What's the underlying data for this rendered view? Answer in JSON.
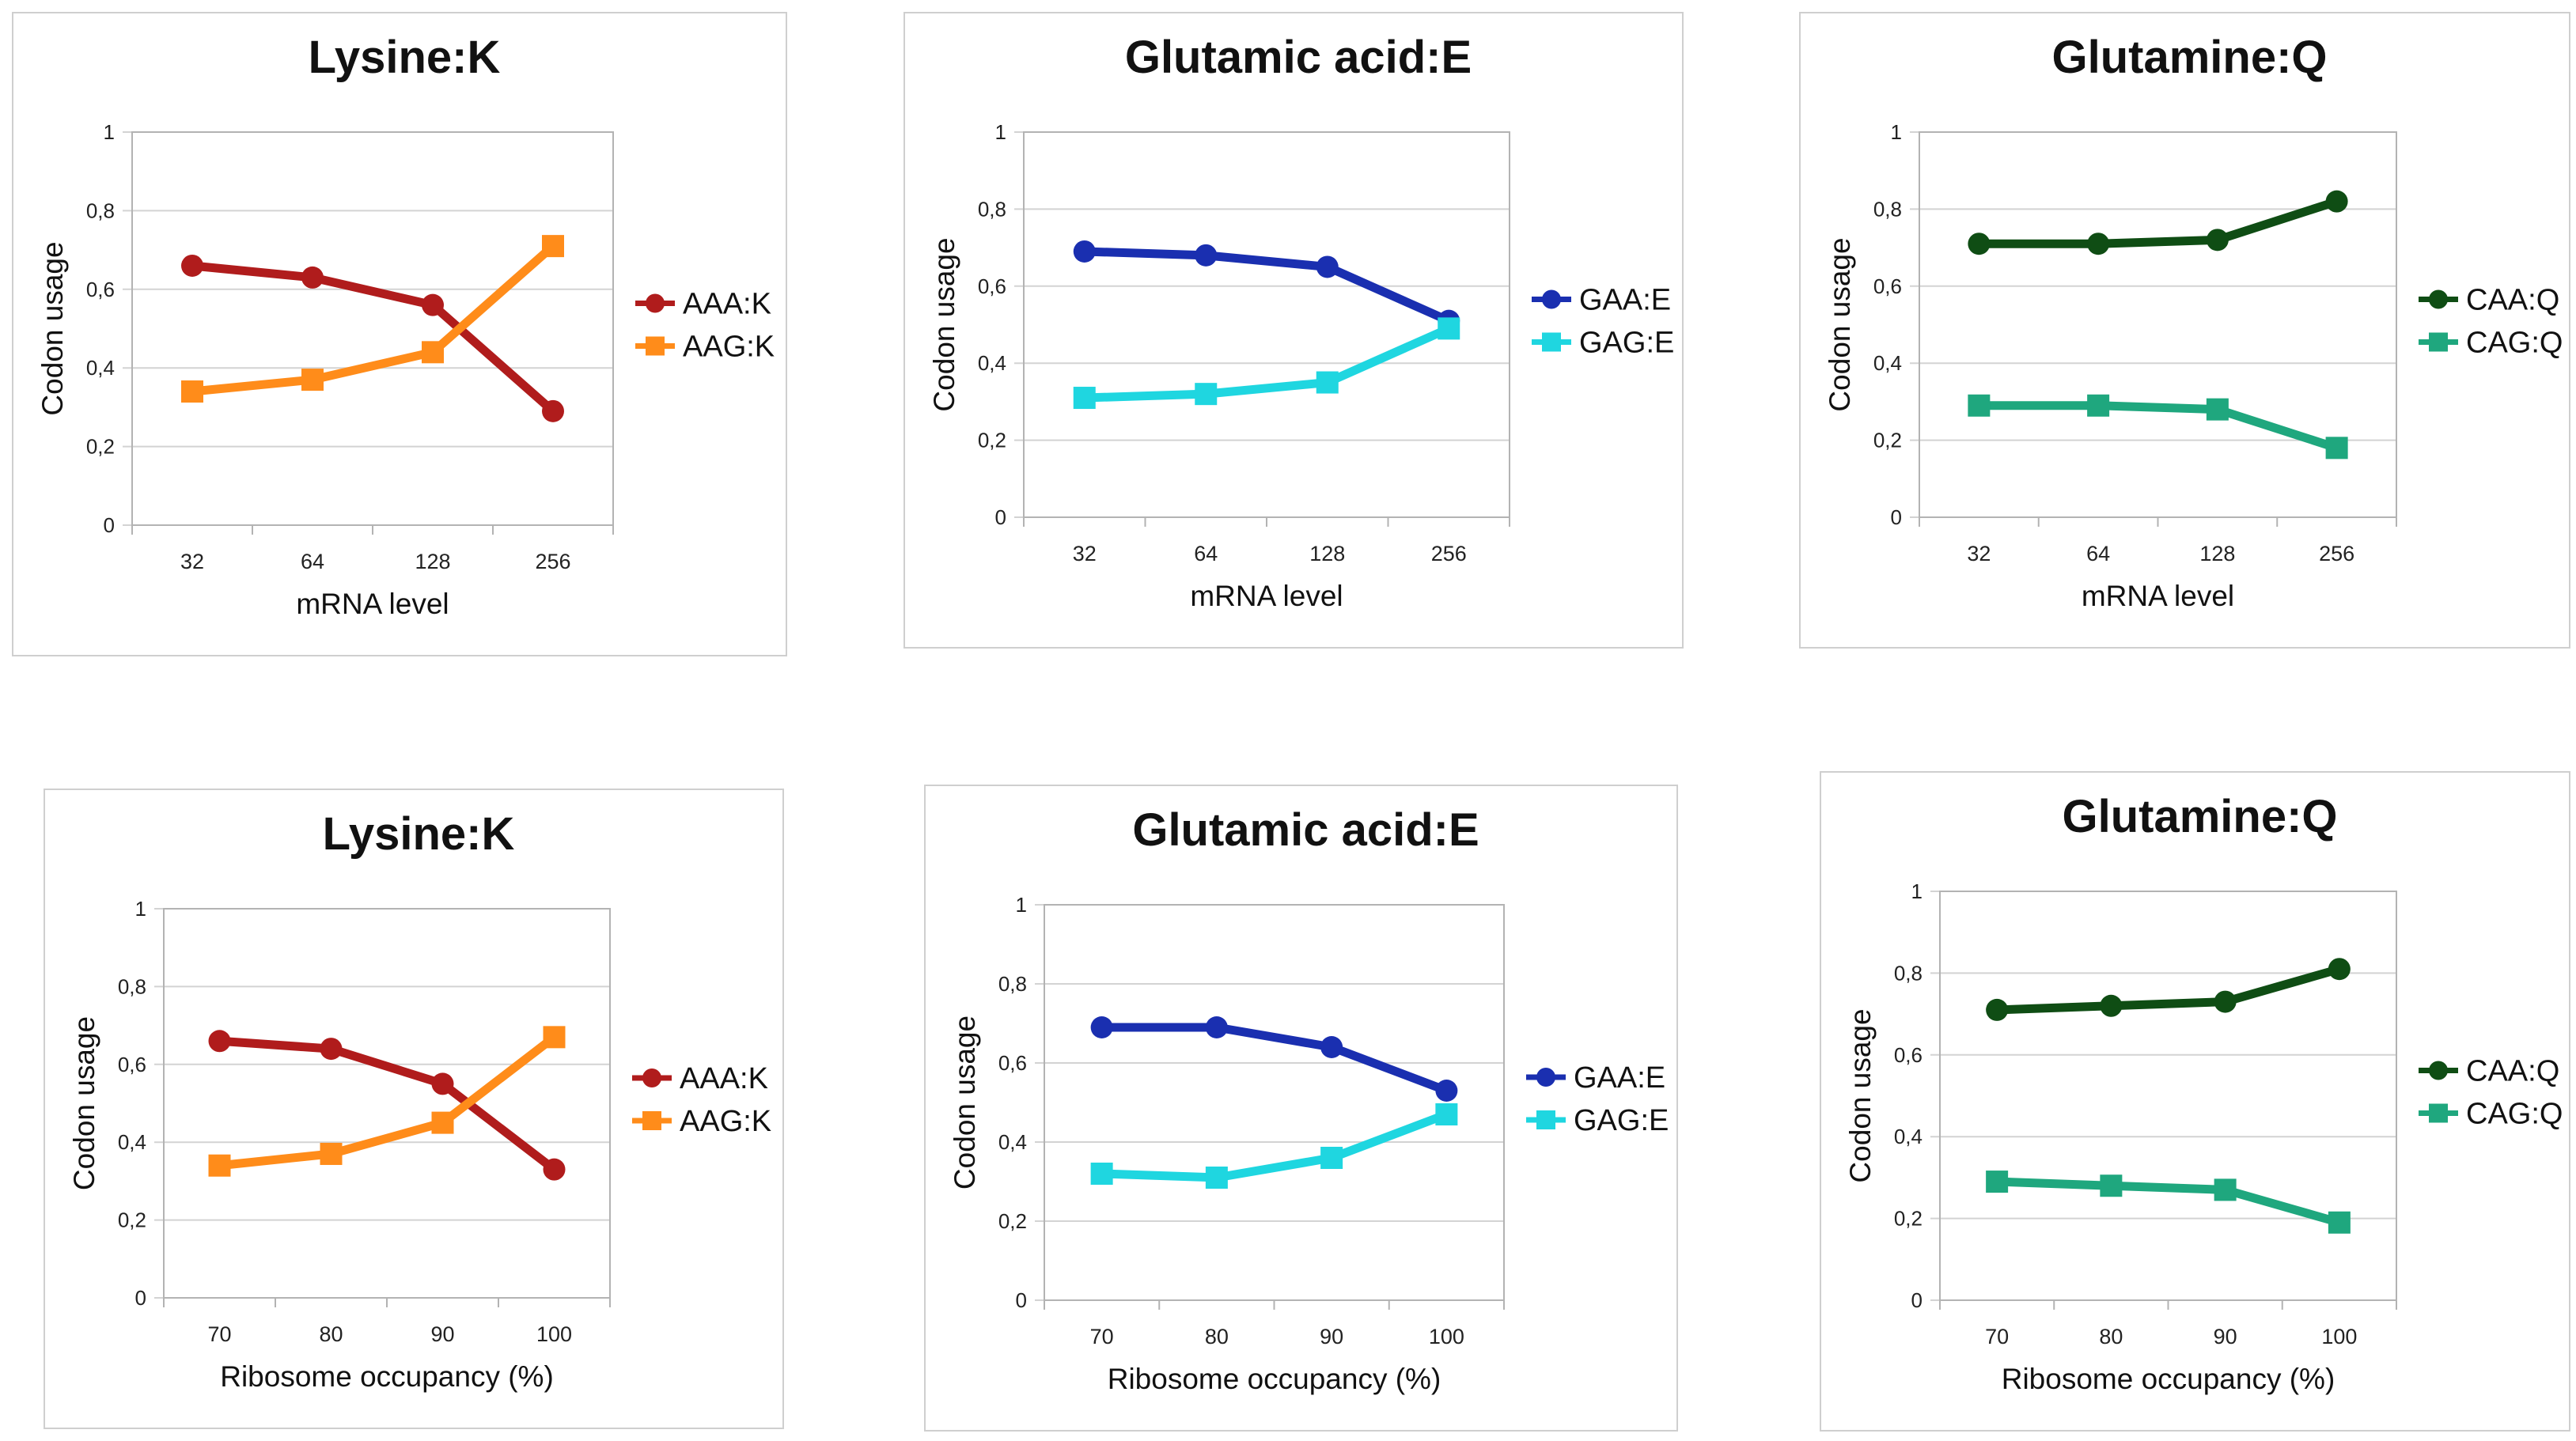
{
  "chart_data": [
    {
      "type": "line",
      "title": "Lysine:K",
      "xlabel": "mRNA level",
      "ylabel": "Codon usage",
      "categories": [
        "32",
        "64",
        "128",
        "256"
      ],
      "ylim": [
        0,
        1
      ],
      "yticks": [
        "0",
        "0,2",
        "0,4",
        "0,6",
        "0,8",
        "1"
      ],
      "grid": true,
      "legend_position": "right",
      "series": [
        {
          "name": "AAA:K",
          "values": [
            0.66,
            0.63,
            0.56,
            0.29
          ],
          "color": "#b01c1c",
          "marker": "circle"
        },
        {
          "name": "AAG:K",
          "values": [
            0.34,
            0.37,
            0.44,
            0.71
          ],
          "color": "#ff8c1a",
          "marker": "square"
        }
      ]
    },
    {
      "type": "line",
      "title": "Glutamic acid:E",
      "xlabel": "mRNA level",
      "ylabel": "Codon usage",
      "categories": [
        "32",
        "64",
        "128",
        "256"
      ],
      "ylim": [
        0,
        1
      ],
      "yticks": [
        "0",
        "0,2",
        "0,4",
        "0,6",
        "0,8",
        "1"
      ],
      "grid": true,
      "legend_position": "right",
      "series": [
        {
          "name": "GAA:E",
          "values": [
            0.69,
            0.68,
            0.65,
            0.51
          ],
          "color": "#1a2fb0",
          "marker": "circle"
        },
        {
          "name": "GAG:E",
          "values": [
            0.31,
            0.32,
            0.35,
            0.49
          ],
          "color": "#1fd6e0",
          "marker": "square"
        }
      ]
    },
    {
      "type": "line",
      "title": "Glutamine:Q",
      "xlabel": "mRNA level",
      "ylabel": "Codon usage",
      "categories": [
        "32",
        "64",
        "128",
        "256"
      ],
      "ylim": [
        0,
        1
      ],
      "yticks": [
        "0",
        "0,2",
        "0,4",
        "0,6",
        "0,8",
        "1"
      ],
      "grid": true,
      "legend_position": "right",
      "series": [
        {
          "name": "CAA:Q",
          "values": [
            0.71,
            0.71,
            0.72,
            0.82
          ],
          "color": "#0f4d14",
          "marker": "circle"
        },
        {
          "name": "CAG:Q",
          "values": [
            0.29,
            0.29,
            0.28,
            0.18
          ],
          "color": "#1fa77e",
          "marker": "square"
        }
      ]
    },
    {
      "type": "line",
      "title": "Lysine:K",
      "xlabel": "Ribosome occupancy (%)",
      "ylabel": "Codon usage",
      "categories": [
        "70",
        "80",
        "90",
        "100"
      ],
      "ylim": [
        0,
        1
      ],
      "yticks": [
        "0",
        "0,2",
        "0,4",
        "0,6",
        "0,8",
        "1"
      ],
      "grid": true,
      "legend_position": "right",
      "series": [
        {
          "name": "AAA:K",
          "values": [
            0.66,
            0.64,
            0.55,
            0.33
          ],
          "color": "#b01c1c",
          "marker": "circle"
        },
        {
          "name": "AAG:K",
          "values": [
            0.34,
            0.37,
            0.45,
            0.67
          ],
          "color": "#ff8c1a",
          "marker": "square"
        }
      ]
    },
    {
      "type": "line",
      "title": "Glutamic acid:E",
      "xlabel": "Ribosome occupancy (%)",
      "ylabel": "Codon usage",
      "categories": [
        "70",
        "80",
        "90",
        "100"
      ],
      "ylim": [
        0,
        1
      ],
      "yticks": [
        "0",
        "0,2",
        "0,4",
        "0,6",
        "0,8",
        "1"
      ],
      "grid": true,
      "legend_position": "right",
      "series": [
        {
          "name": "GAA:E",
          "values": [
            0.69,
            0.69,
            0.64,
            0.53
          ],
          "color": "#1a2fb0",
          "marker": "circle"
        },
        {
          "name": "GAG:E",
          "values": [
            0.32,
            0.31,
            0.36,
            0.47
          ],
          "color": "#1fd6e0",
          "marker": "square"
        }
      ]
    },
    {
      "type": "line",
      "title": "Glutamine:Q",
      "xlabel": "Ribosome occupancy (%)",
      "ylabel": "Codon usage",
      "categories": [
        "70",
        "80",
        "90",
        "100"
      ],
      "ylim": [
        0,
        1
      ],
      "yticks": [
        "0",
        "0,2",
        "0,4",
        "0,6",
        "0,8",
        "1"
      ],
      "grid": true,
      "legend_position": "right",
      "series": [
        {
          "name": "CAA:Q",
          "values": [
            0.71,
            0.72,
            0.73,
            0.81
          ],
          "color": "#0f4d14",
          "marker": "circle"
        },
        {
          "name": "CAG:Q",
          "values": [
            0.29,
            0.28,
            0.27,
            0.19
          ],
          "color": "#1fa77e",
          "marker": "square"
        }
      ]
    }
  ]
}
